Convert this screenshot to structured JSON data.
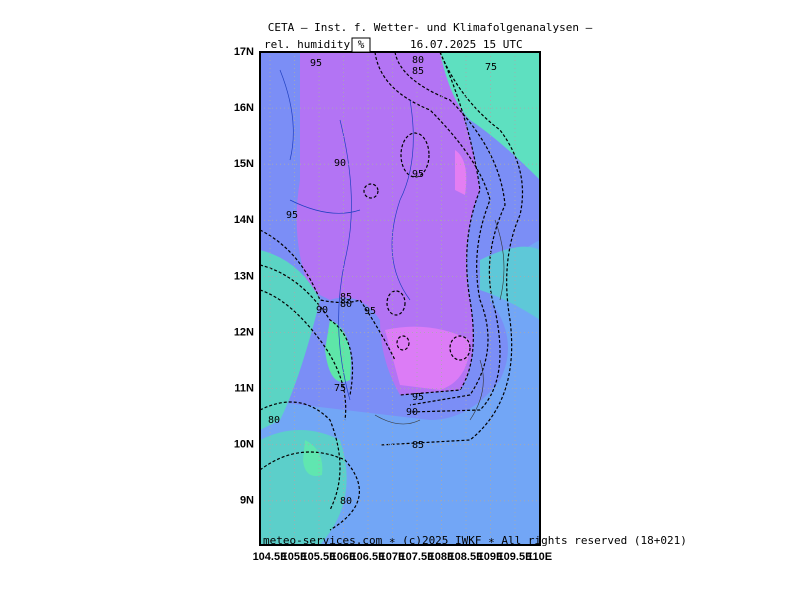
{
  "header": {
    "title": "CETA — Inst. f. Wetter- und Klimafolgenanalysen —",
    "variable": "rel. humidity",
    "unit": "%",
    "datetime": "16.07.2025 15 UTC"
  },
  "lat_labels": [
    "17N",
    "16N",
    "15N",
    "14N",
    "13N",
    "12N",
    "11N",
    "10N",
    "9N"
  ],
  "lon_labels": [
    "104.5E",
    "105E",
    "105.5E",
    "106E",
    "106.5E",
    "107E",
    "107.5E",
    "108E",
    "108.5E",
    "109E",
    "109.5E",
    "110E"
  ],
  "contour_labels": [
    "95",
    "80",
    "85",
    "75",
    "90",
    "95",
    "95",
    "85",
    "80",
    "90",
    "95",
    "75",
    "95",
    "90",
    "80",
    "85",
    "80"
  ],
  "footer": "meteo-services.com ∗ (c)2025 IWKF ∗ All rights reserved (18+021)"
}
